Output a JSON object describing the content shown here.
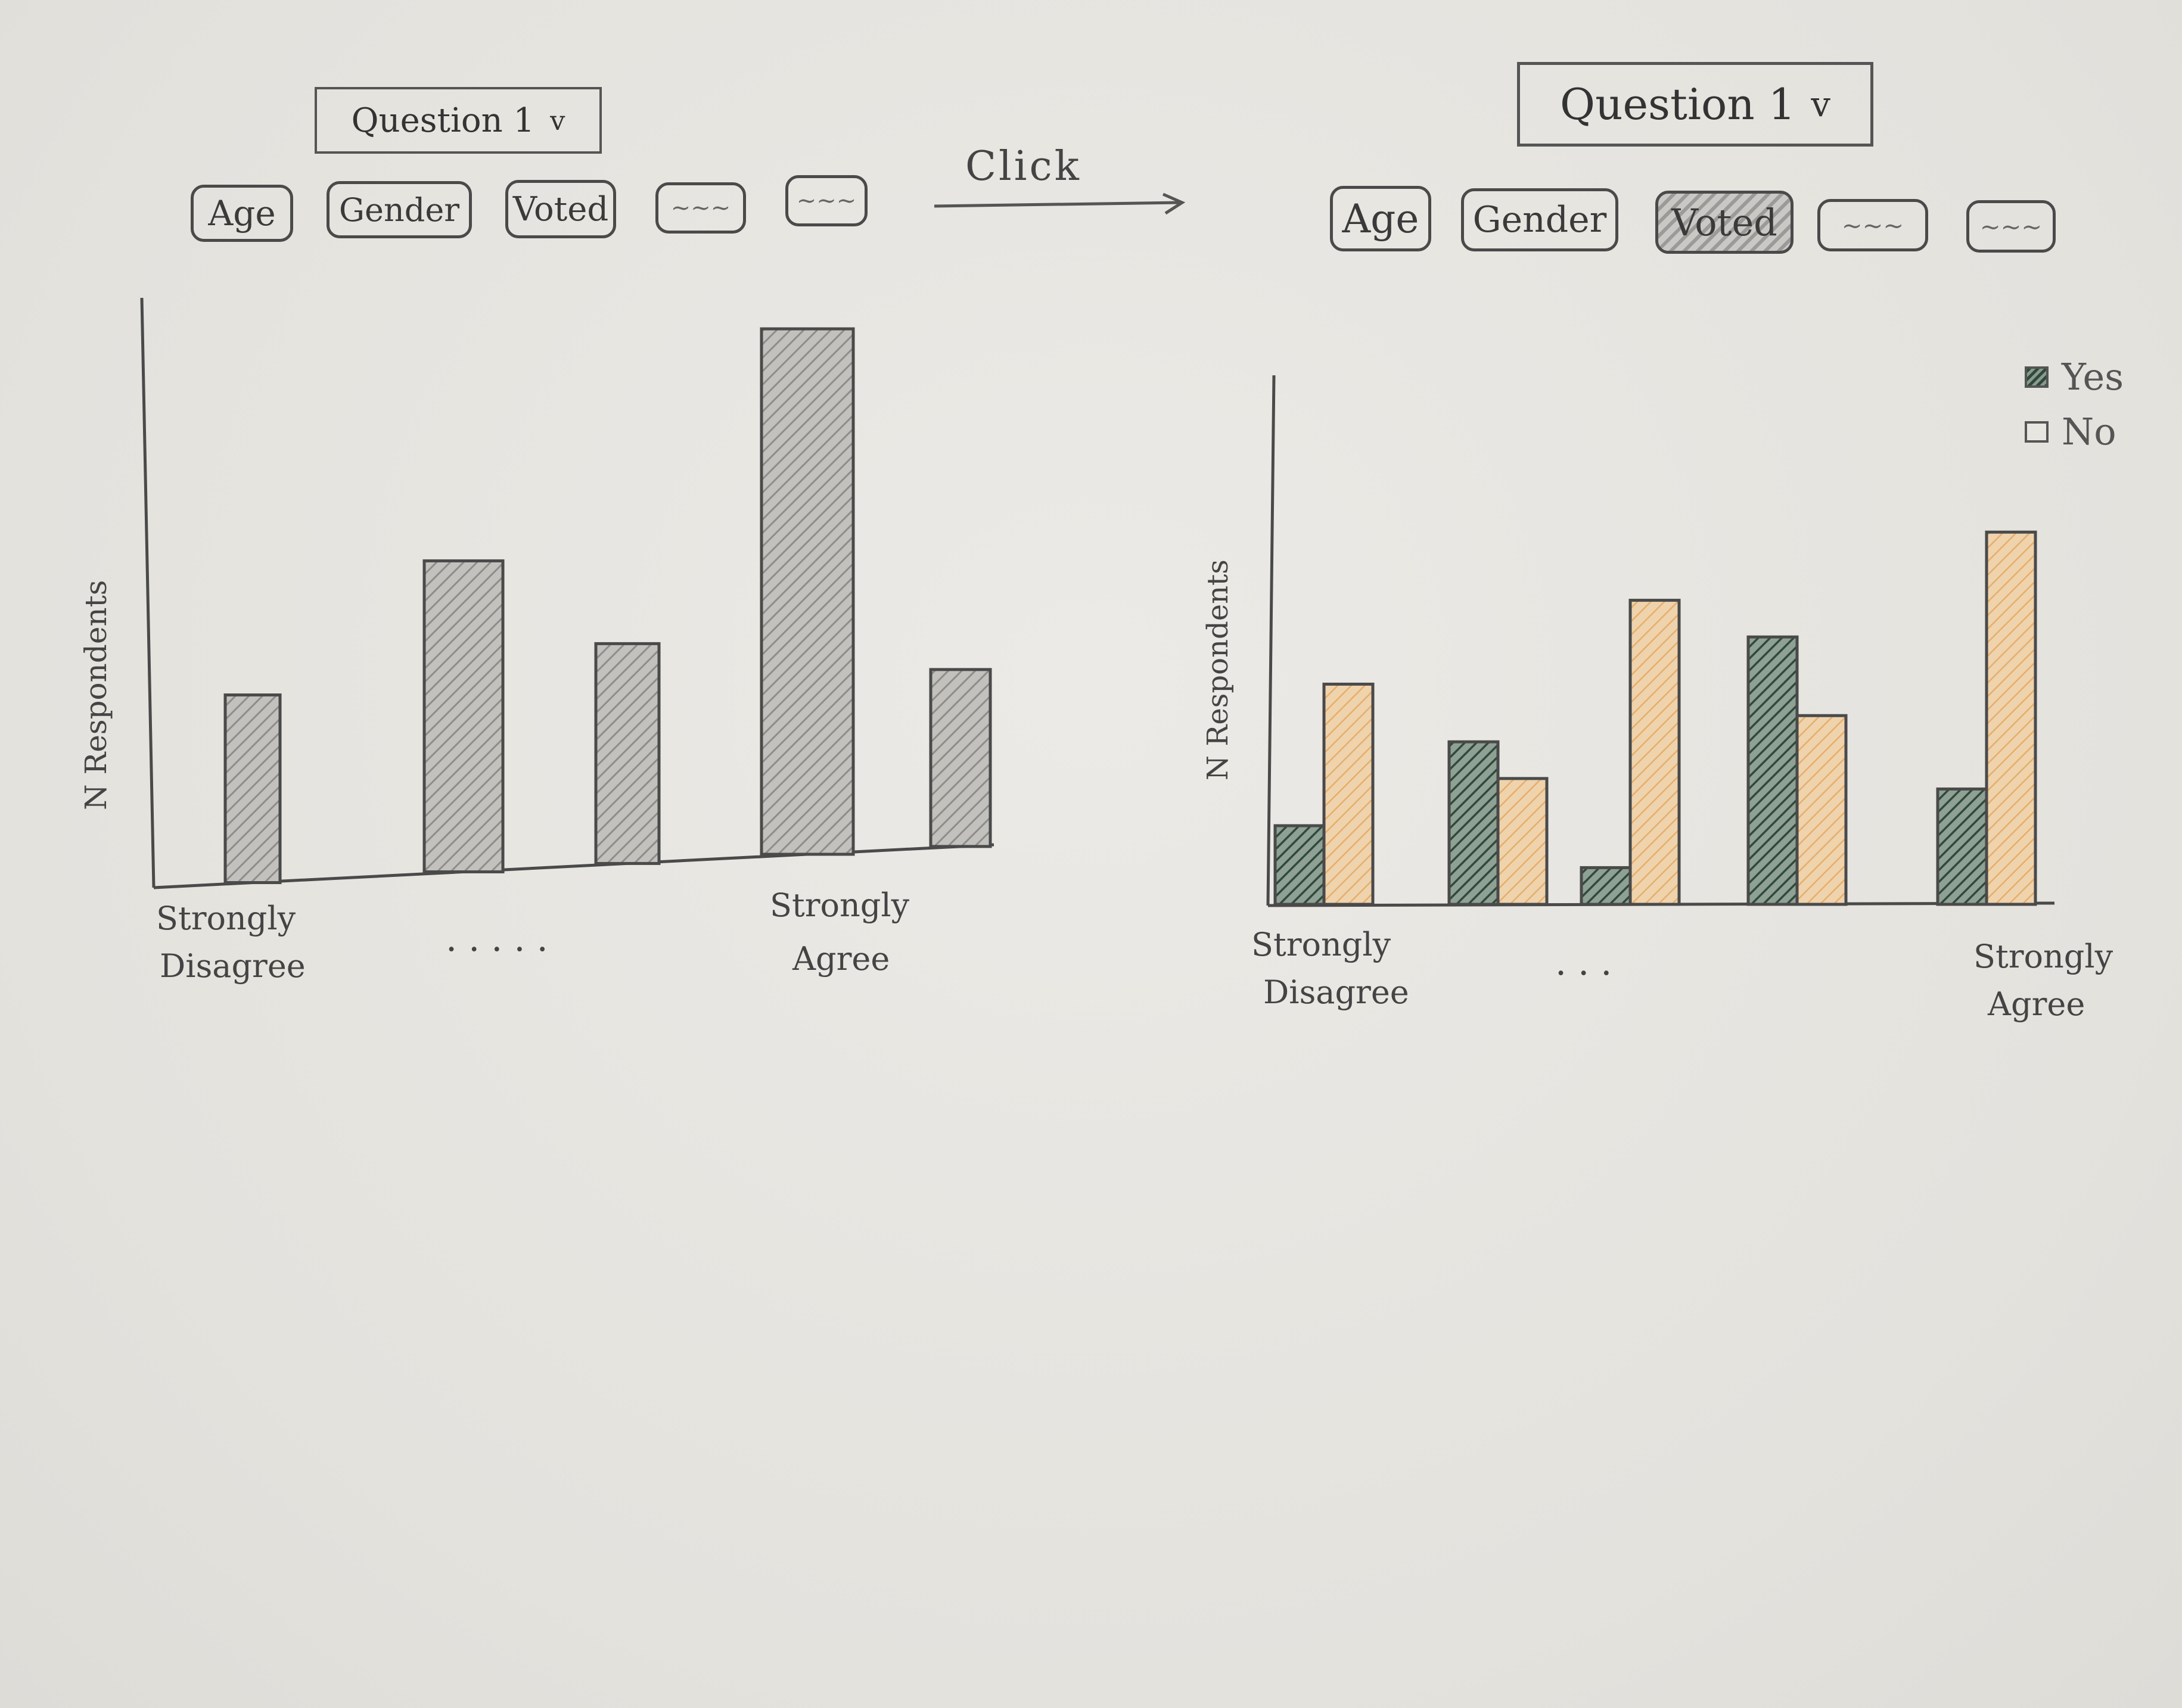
{
  "left_panel": {
    "question_dropdown": {
      "label": "Question 1",
      "chevron": "v"
    },
    "filters": [
      {
        "label": "Age",
        "selected": false
      },
      {
        "label": "Gender",
        "selected": false
      },
      {
        "label": "Voted",
        "selected": false
      },
      {
        "label": "~~~",
        "selected": false
      },
      {
        "label": "~~~",
        "selected": false
      }
    ]
  },
  "transition": {
    "label": "Click"
  },
  "right_panel": {
    "question_dropdown": {
      "label": "Question 1",
      "chevron": "v"
    },
    "filters": [
      {
        "label": "Age",
        "selected": false
      },
      {
        "label": "Gender",
        "selected": false
      },
      {
        "label": "Voted",
        "selected": true
      },
      {
        "label": "~~~",
        "selected": false
      },
      {
        "label": "~~~",
        "selected": false
      }
    ]
  },
  "colors": {
    "grey_bar": "#9e9d9a",
    "yes": "#2f4a3a",
    "no": "#e8b982",
    "axis": "#4a4a4a"
  },
  "chart_data": [
    {
      "type": "bar",
      "title": "",
      "xlabel": "",
      "ylabel": "N Respondents",
      "categories": [
        "Strongly Disagree",
        "",
        "",
        "Strongly Agree",
        ""
      ],
      "values": [
        3.5,
        5.8,
        4.1,
        9.8,
        3.3
      ],
      "ylim": [
        0,
        10
      ],
      "ellipsis": ". . . . .",
      "first_tick": [
        "Strongly",
        "Disagree"
      ],
      "last_tick": [
        "Strongly",
        "Agree"
      ]
    },
    {
      "type": "bar",
      "title": "",
      "xlabel": "",
      "ylabel": "N Respondents",
      "categories": [
        "Strongly Disagree",
        "",
        "",
        "",
        "Strongly Agree"
      ],
      "series": [
        {
          "name": "Yes",
          "values": [
            1.5,
            3.1,
            0.7,
            5.1,
            2.2
          ]
        },
        {
          "name": "No",
          "values": [
            4.2,
            2.4,
            5.8,
            3.6,
            7.1
          ]
        }
      ],
      "ylim": [
        0,
        10
      ],
      "legend": "top-right",
      "ellipsis": ". . .",
      "first_tick": [
        "Strongly",
        "Disagree"
      ],
      "last_tick": [
        "Strongly",
        "Agree"
      ]
    }
  ]
}
